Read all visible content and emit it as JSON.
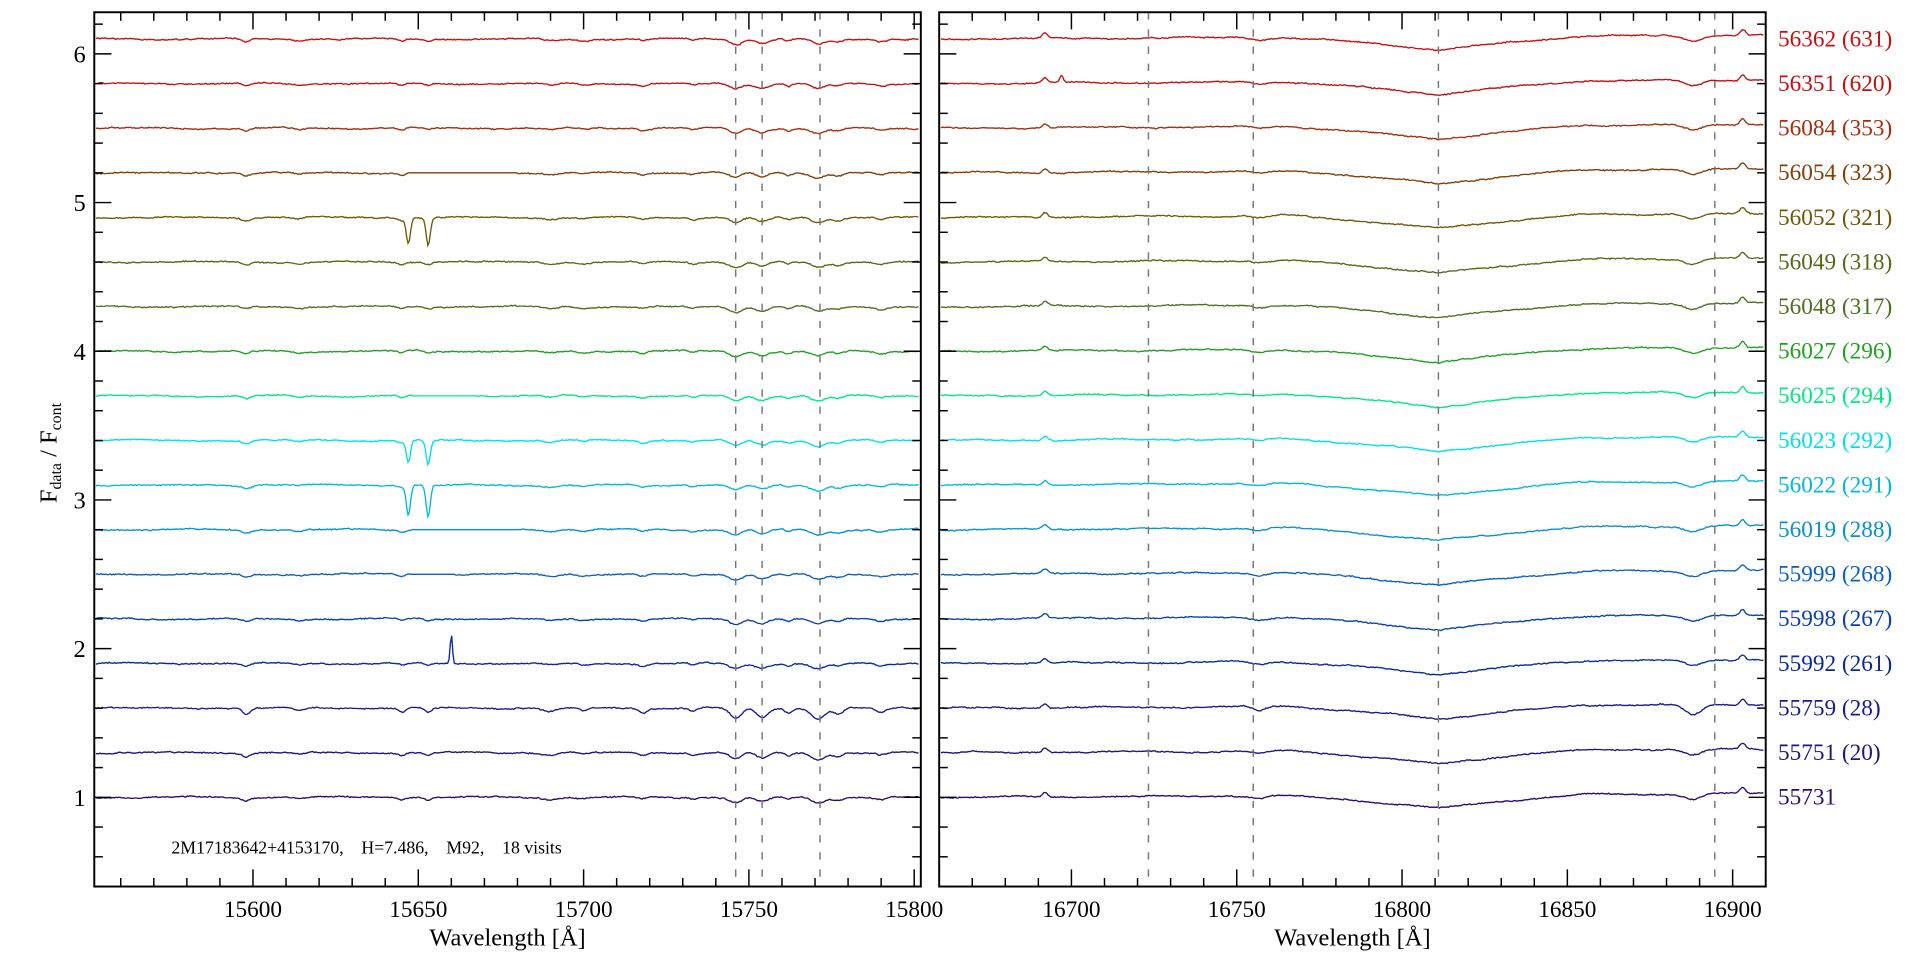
{
  "chart_data": {
    "type": "line",
    "title": "",
    "ylabel": {
      "main1": "F",
      "sub1": "data",
      "main2": " / F",
      "sub2": "cont"
    },
    "xlabel": "Wavelength [Å]",
    "ylim": [
      0.4,
      6.28
    ],
    "yticks": [
      1,
      2,
      3,
      4,
      5,
      6
    ],
    "annotation": "2M17183642+4153170,    H=7.486,    M92,    18 visits",
    "panels": [
      {
        "xlim": [
          15552,
          15802
        ],
        "xticks": [
          15600,
          15650,
          15700,
          15750,
          15800
        ],
        "dashed_lines": [
          15746,
          15754,
          15771.5
        ],
        "lines": [
          [
            15598,
            0.02,
            1.2
          ],
          [
            15614,
            0.01,
            1.5
          ],
          [
            15645,
            0.015,
            1
          ],
          [
            15653,
            0.015,
            1
          ],
          [
            15690,
            0.012,
            2
          ],
          [
            15700,
            0.01,
            1.5
          ],
          [
            15718,
            0.015,
            1.2
          ],
          [
            15733,
            0.012,
            1
          ],
          [
            15746,
            0.035,
            1.8
          ],
          [
            15754,
            0.03,
            1.8
          ],
          [
            15762,
            0.015,
            1
          ],
          [
            15771,
            0.035,
            2
          ],
          [
            15777,
            0.02,
            1.5
          ],
          [
            15790,
            0.015,
            1.5
          ]
        ]
      },
      {
        "xlim": [
          16660,
          16910
        ],
        "xticks": [
          16700,
          16750,
          16800,
          16850,
          16900
        ],
        "dashed_lines": [
          16723.3,
          16755,
          16811,
          16894.6
        ],
        "lines": [
          [
            16692,
            -0.03,
            0.8
          ],
          [
            16757,
            0.015,
            2
          ],
          [
            16888,
            0.035,
            2.5
          ],
          [
            16903,
            -0.04,
            0.8
          ]
        ],
        "broad_dip": {
          "center": 16811,
          "depth": 0.09,
          "halfwidth": 45
        }
      }
    ],
    "series": [
      {
        "label": "55731",
        "mjd": 55731,
        "color": "#2c0a6e",
        "offset": 1.0,
        "line_scale": 1
      },
      {
        "label": "55751 (20)",
        "mjd": 55751,
        "visit": 20,
        "color": "#26137c",
        "offset": 1.3,
        "line_scale": 1.2
      },
      {
        "label": "55759 (28)",
        "mjd": 55759,
        "visit": 28,
        "color": "#1a1a8c",
        "offset": 1.6,
        "line_scale": 2
      },
      {
        "label": "55992 (261)",
        "mjd": 55992,
        "visit": 261,
        "color": "#0a2a9c",
        "offset": 1.9,
        "line_scale": 1,
        "extra_left": [
          [
            15660,
            -0.2,
            0.35
          ]
        ]
      },
      {
        "label": "55998 (267)",
        "mjd": 55998,
        "visit": 267,
        "color": "#0a40ac",
        "offset": 2.2,
        "line_scale": 1
      },
      {
        "label": "55999 (268)",
        "mjd": 55999,
        "visit": 268,
        "color": "#0a60c0",
        "offset": 2.5,
        "line_scale": 1,
        "gap": [
          15648,
          15661
        ]
      },
      {
        "label": "56019 (288)",
        "mjd": 56019,
        "visit": 288,
        "color": "#0a90d0",
        "offset": 2.8,
        "line_scale": 1,
        "gap": [
          15648,
          15680
        ]
      },
      {
        "label": "56022 (291)",
        "mjd": 56022,
        "visit": 291,
        "color": "#00b8e0",
        "offset": 3.1,
        "line_scale": 1,
        "extra_left": [
          [
            15647,
            0.2,
            0.6
          ],
          [
            15653,
            0.2,
            0.6
          ]
        ]
      },
      {
        "label": "56023 (292)",
        "mjd": 56023,
        "visit": 292,
        "color": "#00e0e8",
        "offset": 3.4,
        "line_scale": 1,
        "extra_left": [
          [
            15647,
            0.15,
            0.6
          ],
          [
            15653,
            0.15,
            0.6
          ]
        ]
      },
      {
        "label": "56025 (294)",
        "mjd": 56025,
        "visit": 294,
        "color": "#00e880",
        "offset": 3.7,
        "line_scale": 1,
        "gap": [
          15648,
          15668
        ]
      },
      {
        "label": "56027 (296)",
        "mjd": 56027,
        "visit": 296,
        "color": "#20a020",
        "offset": 4.0,
        "line_scale": 1
      },
      {
        "label": "56048 (317)",
        "mjd": 56048,
        "visit": 317,
        "color": "#4a7020",
        "offset": 4.3,
        "line_scale": 1
      },
      {
        "label": "56049 (318)",
        "mjd": 56049,
        "visit": 318,
        "color": "#586818",
        "offset": 4.6,
        "line_scale": 1
      },
      {
        "label": "56052 (321)",
        "mjd": 56052,
        "visit": 321,
        "color": "#705808",
        "offset": 4.9,
        "line_scale": 1,
        "extra_left": [
          [
            15647,
            0.17,
            0.6
          ],
          [
            15653,
            0.17,
            0.6
          ]
        ]
      },
      {
        "label": "56054 (323)",
        "mjd": 56054,
        "visit": 323,
        "color": "#804008",
        "offset": 5.2,
        "line_scale": 1,
        "gap": [
          15647,
          15680
        ]
      },
      {
        "label": "56084 (353)",
        "mjd": 56084,
        "visit": 353,
        "color": "#a03010",
        "offset": 5.5,
        "line_scale": 1
      },
      {
        "label": "56351 (620)",
        "mjd": 56351,
        "visit": 620,
        "color": "#c01010",
        "offset": 5.8,
        "line_scale": 1,
        "extra_right": [
          [
            16697,
            -0.05,
            0.5
          ]
        ]
      },
      {
        "label": "56362 (631)",
        "mjd": 56362,
        "visit": 631,
        "color": "#c81010",
        "offset": 6.1,
        "line_scale": 1
      }
    ]
  }
}
